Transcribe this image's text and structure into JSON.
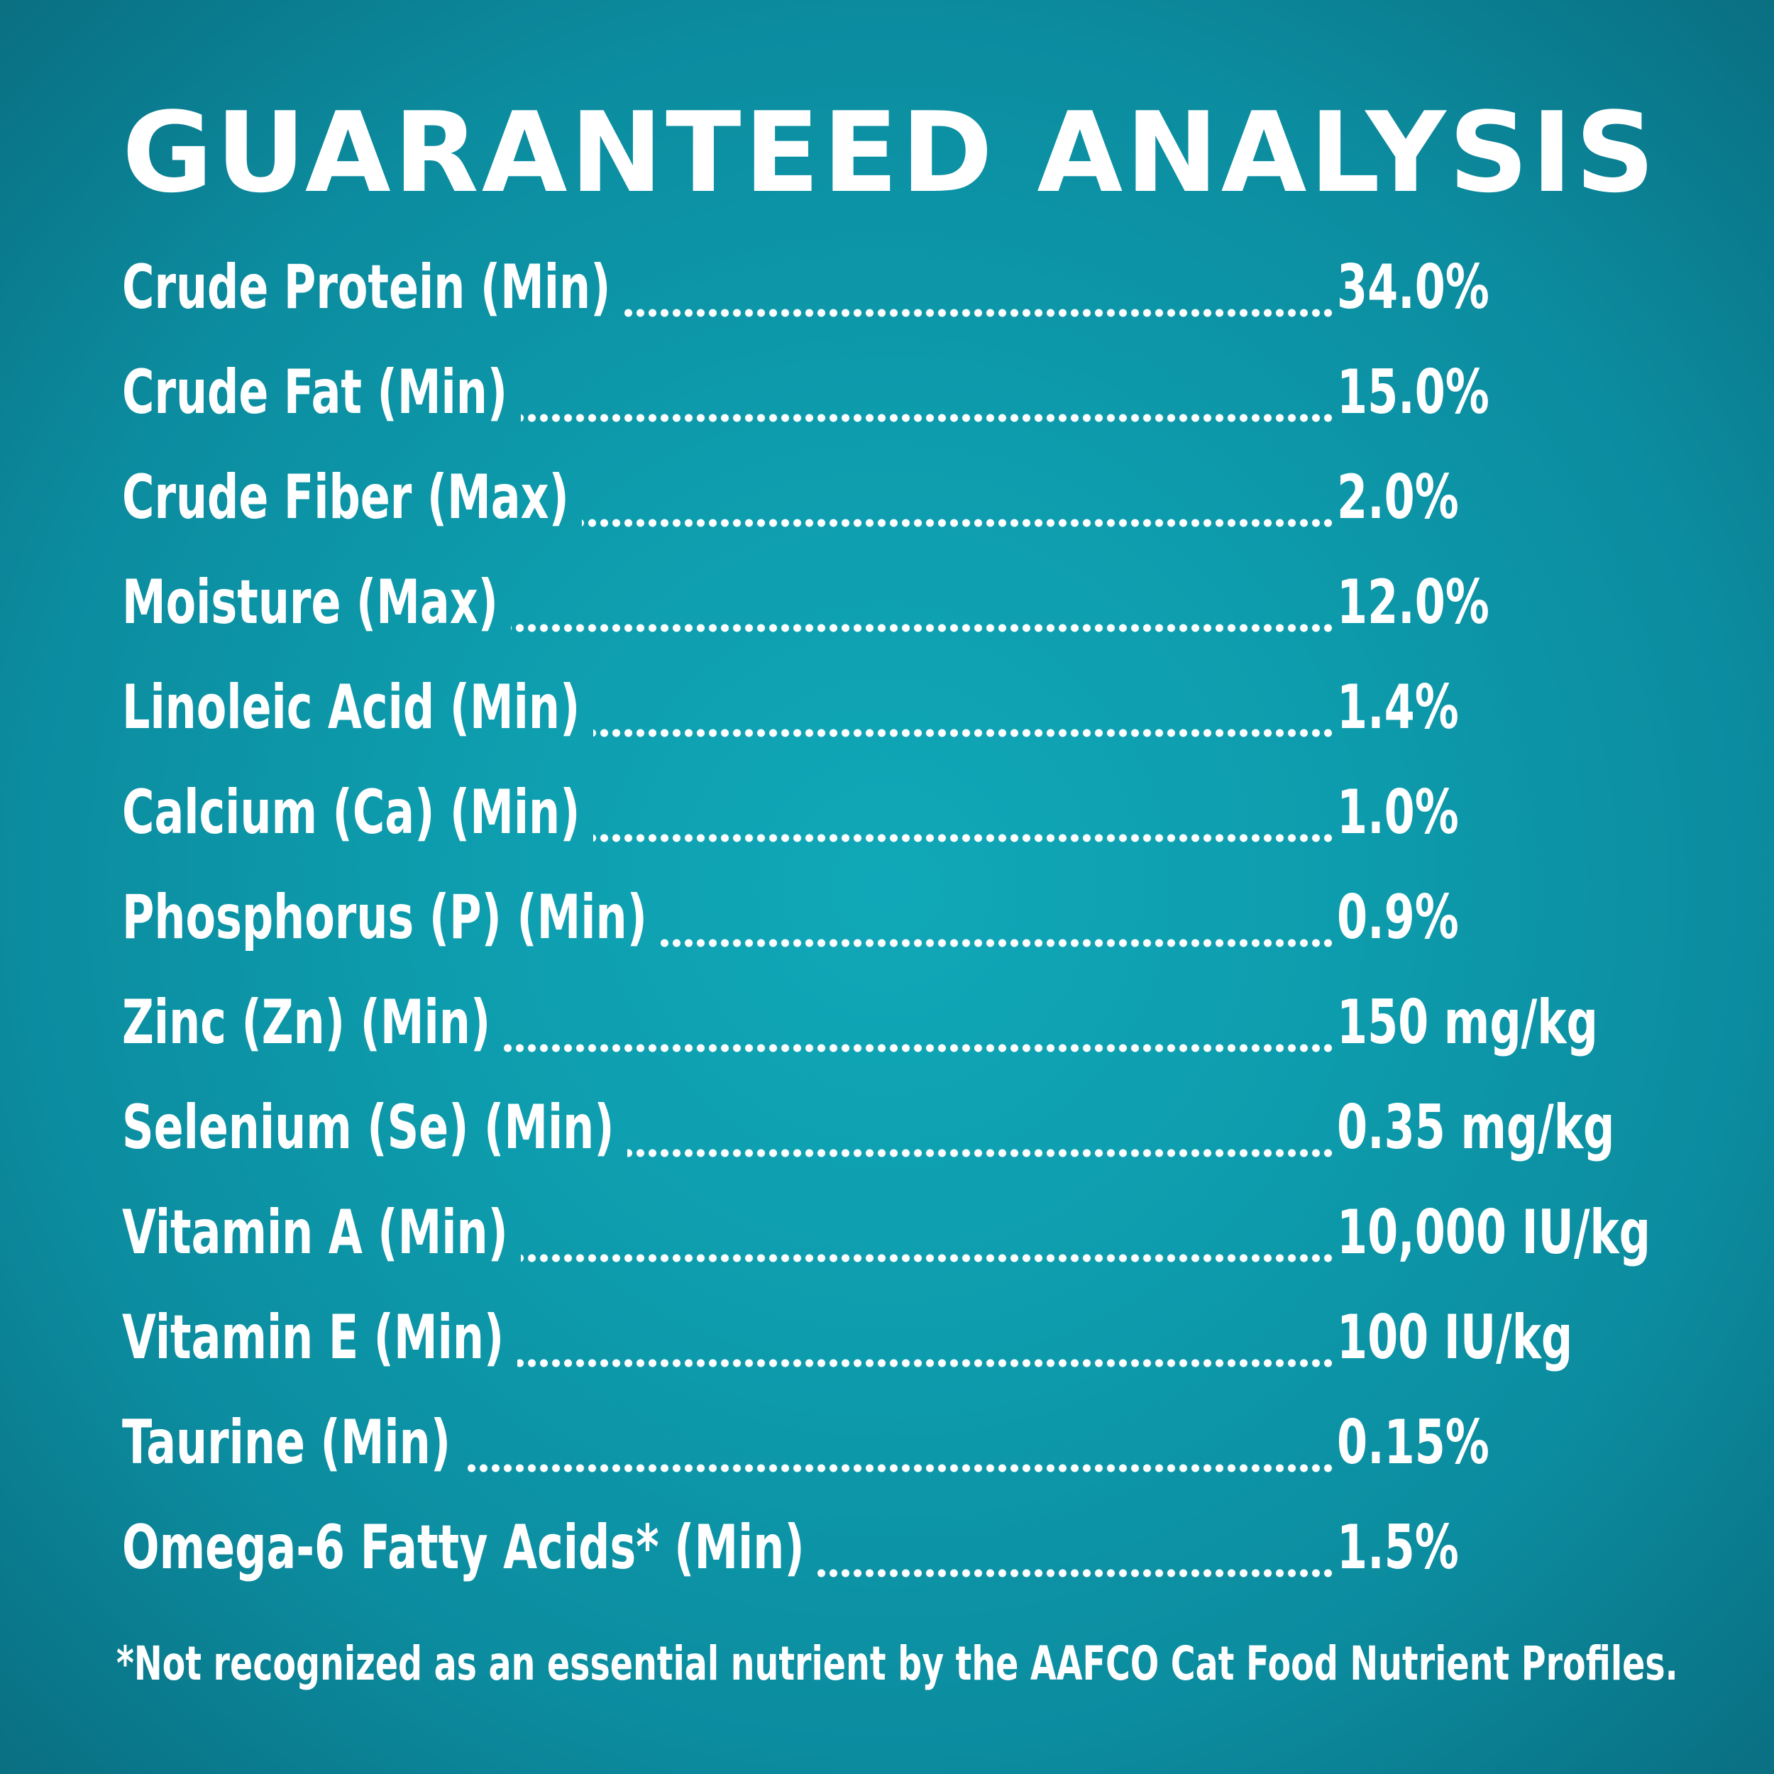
{
  "title": "GUARANTEED ANALYSIS",
  "rows": [
    {
      "label": "Crude Protein (Min)",
      "value": "34.0%"
    },
    {
      "label": "Crude Fat (Min)",
      "value": "15.0%"
    },
    {
      "label": "Crude Fiber (Max)",
      "value": "2.0%"
    },
    {
      "label": "Moisture (Max)",
      "value": "12.0%"
    },
    {
      "label": "Linoleic Acid (Min)",
      "value": "1.4%"
    },
    {
      "label": "Calcium (Ca) (Min)",
      "value": "1.0%"
    },
    {
      "label": "Phosphorus (P) (Min)",
      "value": "0.9%"
    },
    {
      "label": "Zinc (Zn) (Min)",
      "value": "150 mg/kg"
    },
    {
      "label": "Selenium (Se) (Min)",
      "value": "0.35 mg/kg"
    },
    {
      "label": "Vitamin A (Min)",
      "value": "10,000 IU/kg"
    },
    {
      "label": "Vitamin E (Min)",
      "value": "100 IU/kg"
    },
    {
      "label": "Taurine (Min)",
      "value": "0.15%"
    },
    {
      "label": "Omega-6 Fatty Acids* (Min)",
      "value": "1.5%"
    }
  ],
  "footnote": "*Not recognized as an essential nutrient by the AAFCO Cat Food Nutrient Profiles.",
  "colors": {
    "background_center": "#10a8b8",
    "background_edge": "#096a7c",
    "text": "#ffffff"
  }
}
